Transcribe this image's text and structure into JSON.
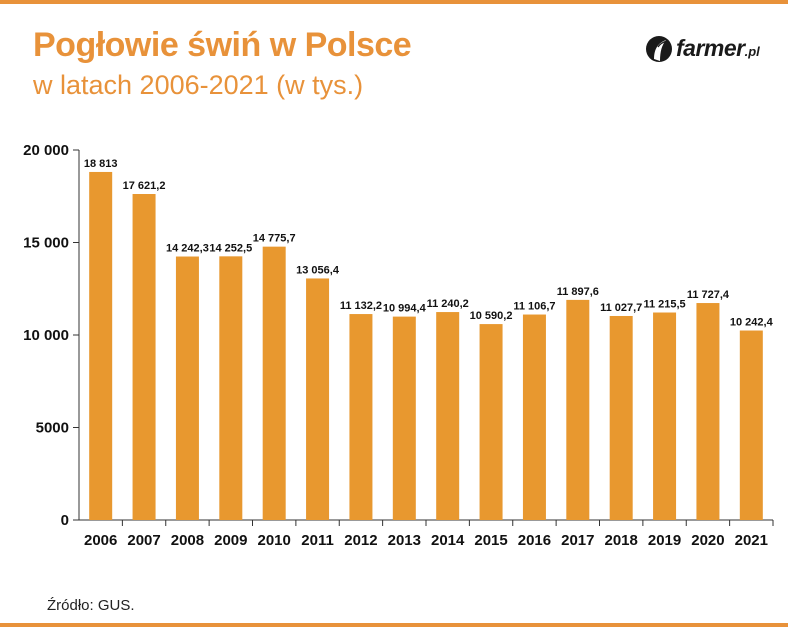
{
  "header": {
    "title": "Pogłowie świń w Polsce",
    "subtitle": "w latach 2006-2021 (w tys.)"
  },
  "logo": {
    "name": "farmer",
    "suffix": ".pl",
    "icon": "farmer-leaf-icon"
  },
  "footer": {
    "source": "Źródło: GUS."
  },
  "colors": {
    "accent": "#e8923a",
    "bar": "#e8982f"
  },
  "chart_data": {
    "type": "bar",
    "categories": [
      "2006",
      "2007",
      "2008",
      "2009",
      "2010",
      "2011",
      "2012",
      "2013",
      "2014",
      "2015",
      "2016",
      "2017",
      "2018",
      "2019",
      "2020",
      "2021"
    ],
    "values": [
      18813,
      17621.2,
      14242.3,
      14252.5,
      14775.7,
      13056.4,
      11132.2,
      10994.4,
      11240.2,
      10590.2,
      11106.7,
      11897.6,
      11027.7,
      11215.5,
      11727.4,
      10242.4
    ],
    "value_labels": [
      "18 813",
      "17 621,2",
      "14 242,3",
      "14 252,5",
      "14 775,7",
      "13 056,4",
      "11 132,2",
      "10 994,4",
      "11 240,2",
      "10 590,2",
      "11 106,7",
      "11 897,6",
      "11 027,7",
      "11 215,5",
      "11 727,4",
      "10 242,4"
    ],
    "yticks": [
      0,
      5000,
      10000,
      15000,
      20000
    ],
    "ytick_labels": [
      "0",
      "5000",
      "10 000",
      "15 000",
      "20 000"
    ],
    "ylim": [
      0,
      20000
    ],
    "grid": false,
    "legend": "none"
  }
}
